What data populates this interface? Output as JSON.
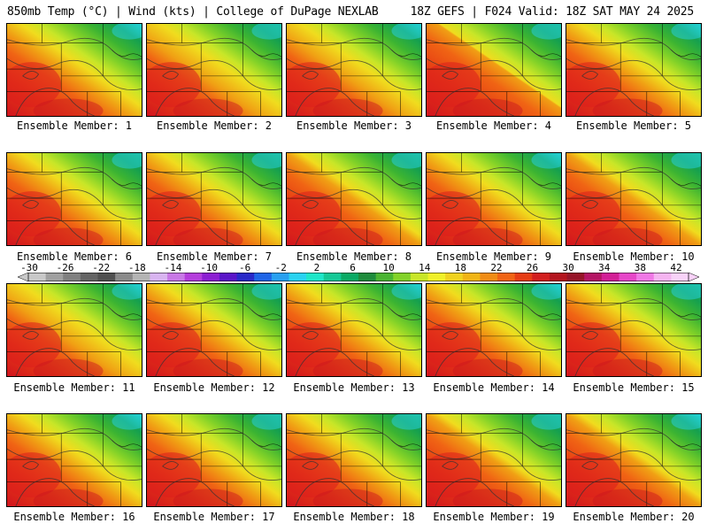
{
  "header": {
    "left": "850mb Temp (°C) | Wind (kts) | College of DuPage NEXLAB",
    "right": "18Z GEFS | F024 Valid: 18Z SAT MAY 24 2025"
  },
  "members": [
    {
      "label": "Ensemble Member: 1",
      "hot": 0.55,
      "cool": 0.5
    },
    {
      "label": "Ensemble Member: 2",
      "hot": 0.5,
      "cool": 0.45
    },
    {
      "label": "Ensemble Member: 3",
      "hot": 0.52,
      "cool": 0.55
    },
    {
      "label": "Ensemble Member: 4",
      "hot": 0.65,
      "cool": 0.45
    },
    {
      "label": "Ensemble Member: 5",
      "hot": 0.55,
      "cool": 0.5
    },
    {
      "label": "Ensemble Member: 6",
      "hot": 0.55,
      "cool": 0.4
    },
    {
      "label": "Ensemble Member: 7",
      "hot": 0.55,
      "cool": 0.45
    },
    {
      "label": "Ensemble Member: 8",
      "hot": 0.6,
      "cool": 0.45
    },
    {
      "label": "Ensemble Member: 9",
      "hot": 0.55,
      "cool": 0.55
    },
    {
      "label": "Ensemble Member: 10",
      "hot": 0.6,
      "cool": 0.4
    },
    {
      "label": "Ensemble Member: 11",
      "hot": 0.5,
      "cool": 0.5
    },
    {
      "label": "Ensemble Member: 12",
      "hot": 0.55,
      "cool": 0.45
    },
    {
      "label": "Ensemble Member: 13",
      "hot": 0.55,
      "cool": 0.5
    },
    {
      "label": "Ensemble Member: 14",
      "hot": 0.55,
      "cool": 0.5
    },
    {
      "label": "Ensemble Member: 15",
      "hot": 0.55,
      "cool": 0.45
    },
    {
      "label": "Ensemble Member: 16",
      "hot": 0.55,
      "cool": 0.5
    },
    {
      "label": "Ensemble Member: 17",
      "hot": 0.55,
      "cool": 0.45
    },
    {
      "label": "Ensemble Member: 18",
      "hot": 0.55,
      "cool": 0.45
    },
    {
      "label": "Ensemble Member: 19",
      "hot": 0.6,
      "cool": 0.45
    },
    {
      "label": "Ensemble Member: 20",
      "hot": 0.6,
      "cool": 0.5
    }
  ],
  "colorbar": {
    "ticks": [
      "-30",
      "-26",
      "-22",
      "-18",
      "-14",
      "-10",
      "-6",
      "-2",
      "2",
      "6",
      "10",
      "14",
      "18",
      "22",
      "26",
      "30",
      "34",
      "38",
      "42"
    ],
    "colors": [
      "#c8c8c8",
      "#a0a0a0",
      "#808080",
      "#646464",
      "#505050",
      "#8a8a8a",
      "#b4b4b4",
      "#d8b4f0",
      "#c878e6",
      "#b43cdc",
      "#8c1ed2",
      "#5a14c8",
      "#2828c8",
      "#1e64e6",
      "#28a0f0",
      "#28d2f0",
      "#1ee6c8",
      "#14c896",
      "#0aaa64",
      "#1e8c3c",
      "#4ab432",
      "#82d228",
      "#c8e628",
      "#f0f028",
      "#f0d21e",
      "#f0b414",
      "#f08c14",
      "#f06414",
      "#e63c14",
      "#d21e1e",
      "#b4141e",
      "#961428",
      "#b41464",
      "#d21e96",
      "#e646c8",
      "#f078e6",
      "#f5b4f0",
      "#f8d2f8"
    ]
  }
}
